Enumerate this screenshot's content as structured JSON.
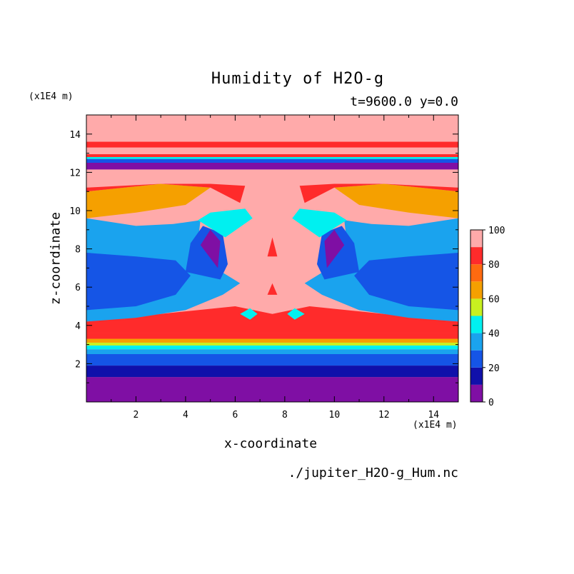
{
  "chart_data": {
    "type": "heatmap",
    "title": "Humidity of H2O-g",
    "subtitle": "t=9600.0 y=0.0",
    "xlabel": "x-coordinate",
    "ylabel": "z-coordinate",
    "x_unit": "(x1E4 m)",
    "y_unit": "(x1E4 m)",
    "xlim": [
      0,
      15
    ],
    "ylim": [
      0,
      15
    ],
    "x_ticks": [
      2,
      4,
      6,
      8,
      10,
      12,
      14
    ],
    "y_ticks": [
      2,
      4,
      6,
      8,
      10,
      12,
      14
    ],
    "colorbar": {
      "range": [
        0,
        100
      ],
      "ticks": [
        0,
        20,
        40,
        60,
        80,
        100
      ],
      "levels": [
        {
          "min": 0,
          "max": 10,
          "color": "#7f0fa4"
        },
        {
          "min": 10,
          "max": 20,
          "color": "#1010aa"
        },
        {
          "min": 20,
          "max": 30,
          "color": "#1555e6"
        },
        {
          "min": 30,
          "max": 40,
          "color": "#1aa3ee"
        },
        {
          "min": 40,
          "max": 50,
          "color": "#00f0f0"
        },
        {
          "min": 50,
          "max": 60,
          "color": "#c8f020"
        },
        {
          "min": 60,
          "max": 70,
          "color": "#f5a000"
        },
        {
          "min": 70,
          "max": 80,
          "color": "#ff6a10"
        },
        {
          "min": 80,
          "max": 90,
          "color": "#ff2b2b"
        },
        {
          "min": 90,
          "max": 100,
          "color": "#ffaaaa"
        }
      ]
    },
    "bands": [
      {
        "z0": 0,
        "z1": 1.3,
        "value": 5
      },
      {
        "z0": 1.3,
        "z1": 1.9,
        "value": 15
      },
      {
        "z0": 1.9,
        "z1": 2.5,
        "value": 25
      },
      {
        "z0": 2.5,
        "z1": 2.75,
        "value": 35
      },
      {
        "z0": 2.75,
        "z1": 2.95,
        "value": 45
      },
      {
        "z0": 2.95,
        "z1": 3.1,
        "value": 55
      },
      {
        "z0": 3.1,
        "z1": 3.3,
        "value": 65
      },
      {
        "z0": 3.3,
        "z1": 3.6,
        "value": 85
      },
      {
        "z0": 11.8,
        "z1": 12.15,
        "value": 95
      },
      {
        "z0": 12.15,
        "z1": 12.5,
        "value": 5
      },
      {
        "z0": 12.5,
        "z1": 12.7,
        "value": 25
      },
      {
        "z0": 12.7,
        "z1": 12.8,
        "value": 45
      },
      {
        "z0": 12.8,
        "z1": 12.95,
        "value": 85
      },
      {
        "z0": 12.95,
        "z1": 13.3,
        "value": 95
      },
      {
        "z0": 13.3,
        "z1": 13.6,
        "value": 85
      },
      {
        "z0": 13.6,
        "z1": 15,
        "value": 95
      }
    ],
    "regions": [
      {
        "value": 85,
        "points": [
          [
            0,
            3.6
          ],
          [
            15,
            3.6
          ],
          [
            15,
            4.2
          ],
          [
            12,
            4.6
          ],
          [
            9,
            5.0
          ],
          [
            7.5,
            4.6
          ],
          [
            6,
            5.0
          ],
          [
            3,
            4.6
          ],
          [
            0,
            4.2
          ]
        ]
      },
      {
        "value": 65,
        "points": [
          [
            0,
            4.2
          ],
          [
            3,
            4.6
          ],
          [
            0,
            4.4
          ]
        ]
      },
      {
        "value": 65,
        "points": [
          [
            15,
            4.2
          ],
          [
            12,
            4.6
          ],
          [
            15,
            4.4
          ]
        ]
      },
      {
        "value": 35,
        "points": [
          [
            0,
            4.2
          ],
          [
            2,
            4.4
          ],
          [
            4,
            4.8
          ],
          [
            5.5,
            5.6
          ],
          [
            6.2,
            6.2
          ],
          [
            5.2,
            7.0
          ],
          [
            4.5,
            8.4
          ],
          [
            4.6,
            9.5
          ],
          [
            3.5,
            9.3
          ],
          [
            2,
            9.2
          ],
          [
            0,
            9.6
          ]
        ]
      },
      {
        "value": 35,
        "points": [
          [
            15,
            4.2
          ],
          [
            13,
            4.4
          ],
          [
            11,
            4.8
          ],
          [
            9.5,
            5.6
          ],
          [
            8.8,
            6.2
          ],
          [
            9.8,
            7.0
          ],
          [
            10.5,
            8.4
          ],
          [
            10.4,
            9.5
          ],
          [
            11.5,
            9.3
          ],
          [
            13,
            9.2
          ],
          [
            15,
            9.6
          ]
        ]
      },
      {
        "value": 25,
        "points": [
          [
            0,
            4.8
          ],
          [
            2,
            5.0
          ],
          [
            3.6,
            5.6
          ],
          [
            4.2,
            6.6
          ],
          [
            3.6,
            7.4
          ],
          [
            2,
            7.6
          ],
          [
            0,
            7.8
          ]
        ]
      },
      {
        "value": 25,
        "points": [
          [
            15,
            4.8
          ],
          [
            13,
            5.0
          ],
          [
            11.4,
            5.6
          ],
          [
            10.8,
            6.6
          ],
          [
            11.4,
            7.4
          ],
          [
            13,
            7.6
          ],
          [
            15,
            7.8
          ]
        ]
      },
      {
        "value": 25,
        "points": [
          [
            4.0,
            6.8
          ],
          [
            5.4,
            6.4
          ],
          [
            5.7,
            7.2
          ],
          [
            5.5,
            8.8
          ],
          [
            4.7,
            9.2
          ],
          [
            4.2,
            8.3
          ]
        ]
      },
      {
        "value": 25,
        "points": [
          [
            11.0,
            6.8
          ],
          [
            9.6,
            6.4
          ],
          [
            9.3,
            7.2
          ],
          [
            9.5,
            8.8
          ],
          [
            10.3,
            9.2
          ],
          [
            10.8,
            8.3
          ]
        ]
      },
      {
        "value": 5,
        "points": [
          [
            4.6,
            8.2
          ],
          [
            5.3,
            7.0
          ],
          [
            5.4,
            8.4
          ],
          [
            5.0,
            9.0
          ]
        ]
      },
      {
        "value": 5,
        "points": [
          [
            10.4,
            8.2
          ],
          [
            9.7,
            7.0
          ],
          [
            9.6,
            8.4
          ],
          [
            10.0,
            9.0
          ]
        ]
      },
      {
        "value": 45,
        "points": [
          [
            4.5,
            9.5
          ],
          [
            5.0,
            9.9
          ],
          [
            6.4,
            10.1
          ],
          [
            6.7,
            9.6
          ],
          [
            5.6,
            8.6
          ]
        ]
      },
      {
        "value": 45,
        "points": [
          [
            10.5,
            9.5
          ],
          [
            10.0,
            9.9
          ],
          [
            8.6,
            10.1
          ],
          [
            8.3,
            9.6
          ],
          [
            9.4,
            8.6
          ]
        ]
      },
      {
        "value": 65,
        "points": [
          [
            0,
            9.6
          ],
          [
            2,
            9.9
          ],
          [
            4,
            10.3
          ],
          [
            5,
            11.2
          ],
          [
            3,
            11.4
          ],
          [
            0,
            11.0
          ]
        ]
      },
      {
        "value": 65,
        "points": [
          [
            15,
            9.6
          ],
          [
            13,
            9.9
          ],
          [
            11,
            10.3
          ],
          [
            10,
            11.2
          ],
          [
            12,
            11.4
          ],
          [
            15,
            11.0
          ]
        ]
      },
      {
        "value": 85,
        "points": [
          [
            0,
            11.0
          ],
          [
            3,
            11.4
          ],
          [
            5,
            11.4
          ],
          [
            6.4,
            11.3
          ],
          [
            6.2,
            10.4
          ],
          [
            5,
            11.2
          ],
          [
            3,
            11.4
          ],
          [
            0,
            11.2
          ]
        ]
      },
      {
        "value": 85,
        "points": [
          [
            15,
            11.0
          ],
          [
            12,
            11.4
          ],
          [
            10,
            11.4
          ],
          [
            8.6,
            11.3
          ],
          [
            8.8,
            10.4
          ],
          [
            10,
            11.2
          ],
          [
            12,
            11.4
          ],
          [
            15,
            11.2
          ]
        ]
      },
      {
        "value": 45,
        "points": [
          [
            6.2,
            4.6
          ],
          [
            6.6,
            4.9
          ],
          [
            6.9,
            4.6
          ],
          [
            6.6,
            4.3
          ]
        ]
      },
      {
        "value": 45,
        "points": [
          [
            8.8,
            4.6
          ],
          [
            8.4,
            4.9
          ],
          [
            8.1,
            4.6
          ],
          [
            8.4,
            4.3
          ]
        ]
      },
      {
        "value": 85,
        "points": [
          [
            7.3,
            5.6
          ],
          [
            7.5,
            6.2
          ],
          [
            7.7,
            5.6
          ]
        ]
      },
      {
        "value": 85,
        "points": [
          [
            7.3,
            7.6
          ],
          [
            7.5,
            8.6
          ],
          [
            7.7,
            7.6
          ]
        ]
      }
    ]
  },
  "source_label": "./jupiter_H2O-g_Hum.nc"
}
